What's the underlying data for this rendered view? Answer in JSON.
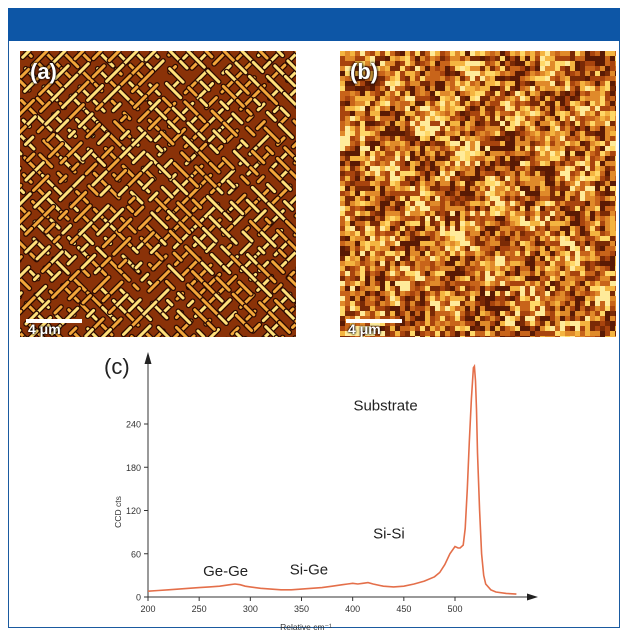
{
  "figure": {
    "panel_a": {
      "label": "(a)",
      "scale_bar": "4 μm"
    },
    "panel_b": {
      "label": "(b)",
      "scale_bar": "4 μm"
    },
    "panel_c": {
      "label": "(c)"
    }
  },
  "colors": {
    "frame": "#1a5aa0",
    "header": "#0d56a6",
    "spectrum": "#e46f4a",
    "map_dark": "#3a1004",
    "map_mid": "#c85f18",
    "map_light": "#ffe07a"
  },
  "chart_data": {
    "type": "line",
    "xlabel": "Relative cm⁻¹",
    "ylabel": "CCD cts",
    "xlim": [
      200,
      570
    ],
    "ylim": [
      0,
      320
    ],
    "xticks": [
      200,
      250,
      300,
      350,
      400,
      450,
      500
    ],
    "yticks": [
      0,
      60,
      120,
      180,
      240
    ],
    "series": [
      {
        "x": [
          200,
          210,
          220,
          230,
          240,
          250,
          260,
          270,
          280,
          285,
          290,
          295,
          300,
          310,
          320,
          330,
          340,
          350,
          360,
          370,
          380,
          390,
          395,
          400,
          405,
          410,
          415,
          420,
          430,
          440,
          450,
          460,
          470,
          480,
          485,
          490,
          495,
          500,
          503,
          505,
          508,
          510,
          512,
          514,
          516,
          518,
          519,
          520,
          521,
          522,
          524,
          526,
          528,
          530,
          535,
          540,
          550,
          560
        ],
        "y": [
          8,
          9,
          10,
          11,
          12,
          13,
          14,
          15,
          17,
          18,
          17,
          15,
          14,
          12,
          11,
          10,
          10,
          11,
          12,
          13,
          15,
          17,
          18,
          19,
          18,
          19,
          20,
          18,
          15,
          14,
          15,
          18,
          22,
          28,
          34,
          45,
          60,
          70,
          68,
          68,
          72,
          95,
          150,
          215,
          275,
          318,
          320,
          300,
          260,
          200,
          120,
          60,
          30,
          18,
          10,
          7,
          5,
          4
        ]
      }
    ],
    "annotations": [
      {
        "text": "Ge-Ge",
        "x": 290,
        "y": 18
      },
      {
        "text": "Si-Ge",
        "x": 405,
        "y": 19
      },
      {
        "text": "Si-Si",
        "x": 503,
        "y": 70
      },
      {
        "text": "Substrate",
        "x": 520,
        "y": 320
      }
    ]
  }
}
